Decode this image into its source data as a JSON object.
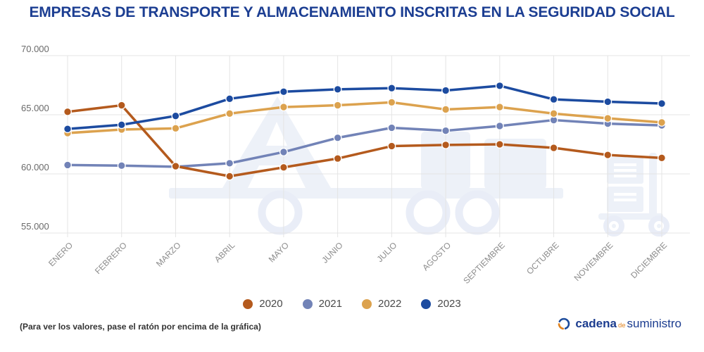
{
  "title": "EMPRESAS DE TRANSPORTE Y ALMACENAMIENTO INSCRITAS EN LA SEGURIDAD SOCIAL",
  "chart_data": {
    "type": "line",
    "title": "EMPRESAS DE TRANSPORTE Y ALMACENAMIENTO INSCRITAS EN LA SEGURIDAD SOCIAL",
    "categories": [
      "ENERO",
      "FEBRERO",
      "MARZO",
      "ABRIL",
      "MAYO",
      "JUNIO",
      "JULIO",
      "AGOSTO",
      "SEPTIEMBRE",
      "OCTUBRE",
      "NOVIEMBRE",
      "DICIEMBRE"
    ],
    "series": [
      {
        "name": "2020",
        "color": "#b45a1d",
        "values": [
          65250,
          65800,
          60650,
          59800,
          60550,
          61300,
          62350,
          62450,
          62500,
          62200,
          61600,
          61350
        ]
      },
      {
        "name": "2021",
        "color": "#7283b7",
        "values": [
          60750,
          60700,
          60600,
          60900,
          61850,
          63050,
          63900,
          63650,
          64050,
          64550,
          64250,
          64100
        ]
      },
      {
        "name": "2022",
        "color": "#dca24e",
        "values": [
          63450,
          63750,
          63850,
          65100,
          65650,
          65800,
          66050,
          65450,
          65650,
          65100,
          64700,
          64350
        ]
      },
      {
        "name": "2023",
        "color": "#1c4ba0",
        "values": [
          63800,
          64150,
          64900,
          66350,
          66950,
          67150,
          67250,
          67050,
          67450,
          66300,
          66100,
          65950
        ]
      }
    ],
    "xlabel": "",
    "ylabel": "",
    "ylim": [
      55000,
      70000
    ],
    "yticks": [
      70000,
      65000,
      60000,
      55000
    ],
    "ytick_labels": [
      "70.000",
      "65.000",
      "60.000",
      "55.000"
    ],
    "grid": true,
    "legend_position": "bottom"
  },
  "footer": {
    "note": "(Para ver los valores, pase el ratón por encima de la gráfica)"
  },
  "logo": {
    "word1": "cadena",
    "word2": "de",
    "word3": "suministro",
    "icon_blue": "#1b4a9b",
    "icon_orange": "#e0831f"
  },
  "colors": {
    "title": "#1c3e92",
    "grid": "#e4e4e4",
    "y_tick_label": "#6a6a6a",
    "x_tick_label": "#8c8c8c",
    "legend_text": "#4a4a4a",
    "watermark": "#edf1f8",
    "marker_ring": "#ffffff"
  }
}
